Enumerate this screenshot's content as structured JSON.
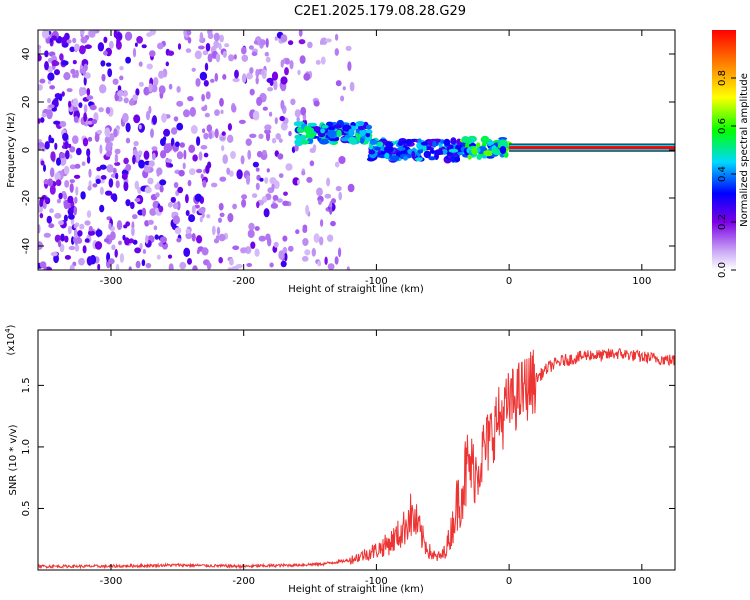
{
  "figure_title": "C2E1.2025.179.08.28.G29",
  "chart_data": [
    {
      "type": "heatmap",
      "title": "",
      "xlabel": "Height of straight line (km)",
      "ylabel": "Frequency (Hz)",
      "xlim": [
        -355,
        125
      ],
      "ylim": [
        -50,
        50
      ],
      "xticks": [
        -300,
        -200,
        -100,
        0,
        100
      ],
      "yticks": [
        -40,
        -20,
        0,
        20,
        40
      ],
      "colorbar": {
        "label": "Normalized spectral amplitude",
        "range": [
          0,
          1
        ],
        "ticks": [
          0.0,
          0.2,
          0.4,
          0.6,
          0.8
        ],
        "tick_labels": [
          "0.0",
          "0.2",
          "0.4",
          "0.6",
          "0.8"
        ],
        "colormap": "rainbow (white-violet-blue-cyan-green-yellow-red)"
      },
      "features": [
        {
          "name": "scattered noise",
          "x_range": [
            -355,
            -118
          ],
          "y_range": [
            -50,
            50
          ],
          "amplitude": 0.1
        },
        {
          "name": "track segment",
          "x_range": [
            -160,
            -105
          ],
          "y_center": 7,
          "amplitude": 0.5
        },
        {
          "name": "track segment",
          "x_range": [
            -105,
            -35
          ],
          "y_center": 0,
          "amplitude": 0.45
        },
        {
          "name": "track segment",
          "x_range": [
            -35,
            0
          ],
          "y_center": 1,
          "amplitude": 0.6
        },
        {
          "name": "carrier line",
          "x_range": [
            0,
            125
          ],
          "y_center": 1,
          "amplitude": 1.0
        }
      ]
    },
    {
      "type": "line",
      "title": "",
      "xlabel": "Height of straight line (km)",
      "ylabel": "SNR (10 * v/v)",
      "y_scale_label": "(x10",
      "y_scale_exp": "4",
      "y_scale_close": ")",
      "xlim": [
        -355,
        125
      ],
      "ylim": [
        0,
        1.95
      ],
      "xticks": [
        -300,
        -200,
        -100,
        0,
        100
      ],
      "yticks": [
        0.5,
        1.0,
        1.5
      ],
      "ytick_labels": [
        "0.5",
        "1.0",
        "1.5"
      ],
      "color": "#ee3333",
      "series": [
        {
          "x": [
            -355,
            -300,
            -250,
            -200,
            -160,
            -140,
            -120,
            -110,
            -100,
            -90,
            -80,
            -75,
            -70,
            -65,
            -60,
            -55,
            -50,
            -45,
            -40,
            -35,
            -30,
            -25,
            -20,
            -15,
            -10,
            -5,
            0,
            10,
            20,
            30,
            40,
            50,
            60,
            70,
            80,
            90,
            100,
            110,
            125
          ],
          "y": [
            0.03,
            0.03,
            0.04,
            0.03,
            0.04,
            0.05,
            0.08,
            0.12,
            0.16,
            0.22,
            0.32,
            0.45,
            0.38,
            0.25,
            0.15,
            0.1,
            0.12,
            0.25,
            0.5,
            0.7,
            0.85,
            0.8,
            0.95,
            1.05,
            1.2,
            1.25,
            1.35,
            1.45,
            1.55,
            1.65,
            1.7,
            1.72,
            1.75,
            1.74,
            1.76,
            1.75,
            1.73,
            1.72,
            1.7
          ]
        }
      ]
    }
  ]
}
